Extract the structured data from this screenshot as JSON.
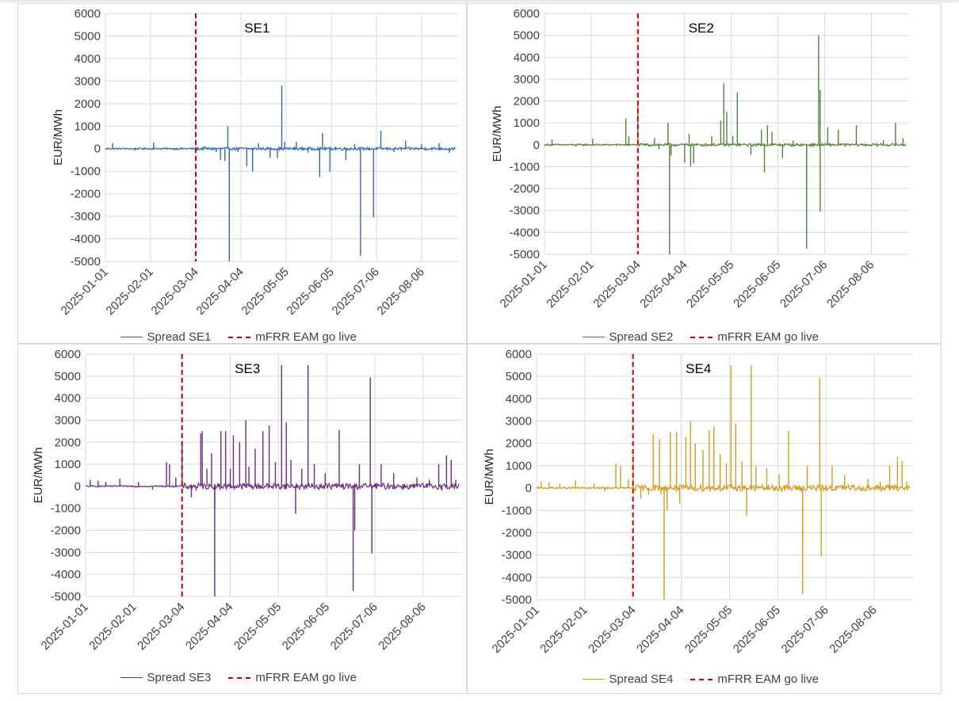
{
  "chart_data": [
    {
      "type": "line",
      "title": "SE1",
      "ylabel": "EUR/MWh",
      "ylim": [
        -5000,
        6000
      ],
      "yticks": [
        "6000",
        "5000",
        "4000",
        "3000",
        "2000",
        "1000",
        "0",
        "-1000",
        "-2000",
        "-3000",
        "-4000",
        "-5000"
      ],
      "xlim": [
        "2025-01-01",
        "2025-08-31"
      ],
      "xticks": [
        "2025-01-01",
        "2025-02-01",
        "2025-03-04",
        "2025-04-04",
        "2025-05-05",
        "2025-06-05",
        "2025-07-06",
        "2025-08-06"
      ],
      "golive_date": "2025-03-04",
      "color": "#2e6bb0",
      "legend": [
        "Spread SE1",
        "mFRR EAM go live"
      ],
      "series": [
        {
          "name": "Spread SE1",
          "spikes": [
            [
              "2025-01-06",
              250
            ],
            [
              "2025-01-21",
              -90
            ],
            [
              "2025-02-03",
              280
            ],
            [
              "2025-02-17",
              -60
            ],
            [
              "2025-03-10",
              120
            ],
            [
              "2025-03-18",
              -150
            ],
            [
              "2025-03-21",
              -500
            ],
            [
              "2025-03-24",
              -540
            ],
            [
              "2025-03-26",
              1000
            ],
            [
              "2025-03-27",
              -5000
            ],
            [
              "2025-03-27",
              -1000
            ],
            [
              "2025-04-02",
              -150
            ],
            [
              "2025-04-08",
              -780
            ],
            [
              "2025-04-12",
              -1020
            ],
            [
              "2025-04-16",
              250
            ],
            [
              "2025-04-24",
              -400
            ],
            [
              "2025-04-29",
              -420
            ],
            [
              "2025-05-02",
              2800
            ],
            [
              "2025-05-04",
              300
            ],
            [
              "2025-05-12",
              300
            ],
            [
              "2025-05-20",
              -180
            ],
            [
              "2025-05-28",
              -1250
            ],
            [
              "2025-05-30",
              700
            ],
            [
              "2025-06-04",
              -1020
            ],
            [
              "2025-06-08",
              100
            ],
            [
              "2025-06-15",
              -500
            ],
            [
              "2025-06-21",
              200
            ],
            [
              "2025-06-25",
              -4750
            ],
            [
              "2025-07-04",
              -3050
            ],
            [
              "2025-07-09",
              800
            ],
            [
              "2025-07-18",
              -150
            ],
            [
              "2025-07-26",
              350
            ],
            [
              "2025-08-06",
              200
            ],
            [
              "2025-08-18",
              250
            ],
            [
              "2025-08-25",
              -180
            ]
          ]
        }
      ]
    },
    {
      "type": "line",
      "title": "SE2",
      "ylabel": "EUR/MWh",
      "ylim": [
        -5000,
        6000
      ],
      "yticks": [
        "6000",
        "5000",
        "4000",
        "3000",
        "2000",
        "1000",
        "0",
        "-1000",
        "-2000",
        "-3000",
        "-4000",
        "-5000"
      ],
      "xlim": [
        "2025-01-01",
        "2025-08-31"
      ],
      "xticks": [
        "2025-01-01",
        "2025-02-01",
        "2025-03-04",
        "2025-04-04",
        "2025-05-05",
        "2025-06-05",
        "2025-07-06",
        "2025-08-06"
      ],
      "golive_date": "2025-03-04",
      "color": "#548235",
      "legend": [
        "Spread SE2",
        "mFRR EAM go live"
      ],
      "series": [
        {
          "name": "Spread SE2",
          "spikes": [
            [
              "2025-01-06",
              250
            ],
            [
              "2025-01-22",
              -80
            ],
            [
              "2025-02-02",
              280
            ],
            [
              "2025-02-24",
              1200
            ],
            [
              "2025-02-26",
              400
            ],
            [
              "2025-03-04",
              1900
            ],
            [
              "2025-03-15",
              300
            ],
            [
              "2025-03-18",
              -200
            ],
            [
              "2025-03-24",
              1000
            ],
            [
              "2025-03-25",
              -5000
            ],
            [
              "2025-03-26",
              -500
            ],
            [
              "2025-04-04",
              -800
            ],
            [
              "2025-04-07",
              500
            ],
            [
              "2025-04-08",
              -1000
            ],
            [
              "2025-04-10",
              -850
            ],
            [
              "2025-04-22",
              400
            ],
            [
              "2025-04-28",
              1100
            ],
            [
              "2025-04-30",
              2800
            ],
            [
              "2025-05-02",
              1500
            ],
            [
              "2025-05-06",
              400
            ],
            [
              "2025-05-09",
              2400
            ],
            [
              "2025-05-18",
              -450
            ],
            [
              "2025-05-25",
              700
            ],
            [
              "2025-05-27",
              -1250
            ],
            [
              "2025-05-29",
              900
            ],
            [
              "2025-06-01",
              600
            ],
            [
              "2025-06-08",
              -600
            ],
            [
              "2025-06-15",
              200
            ],
            [
              "2025-06-24",
              -4750
            ],
            [
              "2025-06-24",
              -2500
            ],
            [
              "2025-07-02",
              5000
            ],
            [
              "2025-07-03",
              2500
            ],
            [
              "2025-07-03",
              -3050
            ],
            [
              "2025-07-08",
              800
            ],
            [
              "2025-07-15",
              700
            ],
            [
              "2025-07-27",
              900
            ],
            [
              "2025-08-14",
              200
            ],
            [
              "2025-08-22",
              1000
            ],
            [
              "2025-08-27",
              300
            ]
          ]
        }
      ]
    },
    {
      "type": "line",
      "title": "SE3",
      "ylabel": "EUR/MWh",
      "ylim": [
        -5000,
        6000
      ],
      "yticks": [
        "6000",
        "5000",
        "4000",
        "3000",
        "2000",
        "1000",
        "0",
        "-1000",
        "-2000",
        "-3000",
        "-4000",
        "-5000"
      ],
      "xlim": [
        "2025-01-01",
        "2025-08-31"
      ],
      "xticks": [
        "2025-01-01",
        "2025-02-01",
        "2025-03-04",
        "2025-04-04",
        "2025-05-05",
        "2025-06-05",
        "2025-07-06",
        "2025-08-06"
      ],
      "golive_date": "2025-03-04",
      "color": "#6b2c7e",
      "legend": [
        "Spread SE3",
        "mFRR EAM go live"
      ],
      "series": [
        {
          "name": "Spread SE3",
          "spikes": [
            [
              "2025-01-04",
              300
            ],
            [
              "2025-01-09",
              250
            ],
            [
              "2025-01-14",
              200
            ],
            [
              "2025-01-23",
              350
            ],
            [
              "2025-02-04",
              200
            ],
            [
              "2025-02-13",
              -150
            ],
            [
              "2025-02-22",
              1100
            ],
            [
              "2025-02-24",
              1000
            ],
            [
              "2025-02-28",
              400
            ],
            [
              "2025-03-04",
              2000
            ],
            [
              "2025-03-10",
              -500
            ],
            [
              "2025-03-13",
              -200
            ],
            [
              "2025-03-16",
              2400
            ],
            [
              "2025-03-17",
              2500
            ],
            [
              "2025-03-20",
              800
            ],
            [
              "2025-03-23",
              1500
            ],
            [
              "2025-03-25",
              -5000
            ],
            [
              "2025-03-25",
              -1000
            ],
            [
              "2025-03-29",
              2500
            ],
            [
              "2025-04-01",
              2500
            ],
            [
              "2025-04-04",
              800
            ],
            [
              "2025-04-06",
              2300
            ],
            [
              "2025-04-10",
              2000
            ],
            [
              "2025-04-14",
              3000
            ],
            [
              "2025-04-16",
              900
            ],
            [
              "2025-04-20",
              1700
            ],
            [
              "2025-04-25",
              2500
            ],
            [
              "2025-04-29",
              2750
            ],
            [
              "2025-05-03",
              1100
            ],
            [
              "2025-05-07",
              5500
            ],
            [
              "2025-05-10",
              2900
            ],
            [
              "2025-05-13",
              1200
            ],
            [
              "2025-05-16",
              -1250
            ],
            [
              "2025-05-20",
              800
            ],
            [
              "2025-05-24",
              5500
            ],
            [
              "2025-05-28",
              1000
            ],
            [
              "2025-06-04",
              600
            ],
            [
              "2025-06-13",
              2550
            ],
            [
              "2025-06-22",
              -4750
            ],
            [
              "2025-06-23",
              -2000
            ],
            [
              "2025-06-26",
              1000
            ],
            [
              "2025-07-03",
              4950
            ],
            [
              "2025-07-04",
              -3050
            ],
            [
              "2025-07-10",
              1000
            ],
            [
              "2025-07-18",
              600
            ],
            [
              "2025-08-02",
              400
            ],
            [
              "2025-08-10",
              300
            ],
            [
              "2025-08-16",
              1000
            ],
            [
              "2025-08-18",
              -200
            ],
            [
              "2025-08-21",
              1400
            ],
            [
              "2025-08-24",
              1200
            ],
            [
              "2025-08-27",
              300
            ]
          ]
        }
      ]
    },
    {
      "type": "line",
      "title": "SE4",
      "ylabel": "EUR/MWh",
      "ylim": [
        -5000,
        6000
      ],
      "yticks": [
        "6000",
        "5000",
        "4000",
        "3000",
        "2000",
        "1000",
        "0",
        "-1000",
        "-2000",
        "-3000",
        "-4000",
        "-5000"
      ],
      "xlim": [
        "2025-01-01",
        "2025-08-31"
      ],
      "xticks": [
        "2025-01-01",
        "2025-02-01",
        "2025-03-04",
        "2025-04-04",
        "2025-05-05",
        "2025-06-05",
        "2025-07-06",
        "2025-08-06"
      ],
      "golive_date": "2025-03-04",
      "color": "#d69a1e",
      "legend": [
        "Spread SE4",
        "mFRR EAM go live"
      ],
      "series": [
        {
          "name": "Spread SE4",
          "spikes": [
            [
              "2025-01-04",
              300
            ],
            [
              "2025-01-09",
              250
            ],
            [
              "2025-01-16",
              200
            ],
            [
              "2025-01-26",
              350
            ],
            [
              "2025-02-07",
              200
            ],
            [
              "2025-02-14",
              -150
            ],
            [
              "2025-02-21",
              1100
            ],
            [
              "2025-02-24",
              1000
            ],
            [
              "2025-03-01",
              400
            ],
            [
              "2025-03-04",
              1500
            ],
            [
              "2025-03-09",
              -500
            ],
            [
              "2025-03-14",
              -300
            ],
            [
              "2025-03-17",
              2400
            ],
            [
              "2025-03-21",
              2200
            ],
            [
              "2025-03-22",
              -300
            ],
            [
              "2025-03-24",
              -5000
            ],
            [
              "2025-03-26",
              -1000
            ],
            [
              "2025-03-28",
              2500
            ],
            [
              "2025-04-01",
              2500
            ],
            [
              "2025-04-03",
              -700
            ],
            [
              "2025-04-07",
              2300
            ],
            [
              "2025-04-10",
              3000
            ],
            [
              "2025-04-13",
              2000
            ],
            [
              "2025-04-18",
              1700
            ],
            [
              "2025-04-22",
              2600
            ],
            [
              "2025-04-25",
              2750
            ],
            [
              "2025-04-29",
              1500
            ],
            [
              "2025-05-03",
              1100
            ],
            [
              "2025-05-06",
              5500
            ],
            [
              "2025-05-09",
              2900
            ],
            [
              "2025-05-13",
              1200
            ],
            [
              "2025-05-16",
              -1250
            ],
            [
              "2025-05-19",
              5500
            ],
            [
              "2025-05-22",
              1000
            ],
            [
              "2025-05-29",
              900
            ],
            [
              "2025-06-06",
              600
            ],
            [
              "2025-06-12",
              2550
            ],
            [
              "2025-06-21",
              -4750
            ],
            [
              "2025-06-21",
              -2500
            ],
            [
              "2025-06-24",
              1000
            ],
            [
              "2025-07-02",
              4950
            ],
            [
              "2025-07-03",
              -3050
            ],
            [
              "2025-07-10",
              1000
            ],
            [
              "2025-07-18",
              600
            ],
            [
              "2025-08-02",
              400
            ],
            [
              "2025-08-10",
              300
            ],
            [
              "2025-08-16",
              1000
            ],
            [
              "2025-08-21",
              1400
            ],
            [
              "2025-08-24",
              1200
            ],
            [
              "2025-08-27",
              300
            ]
          ]
        }
      ]
    }
  ]
}
